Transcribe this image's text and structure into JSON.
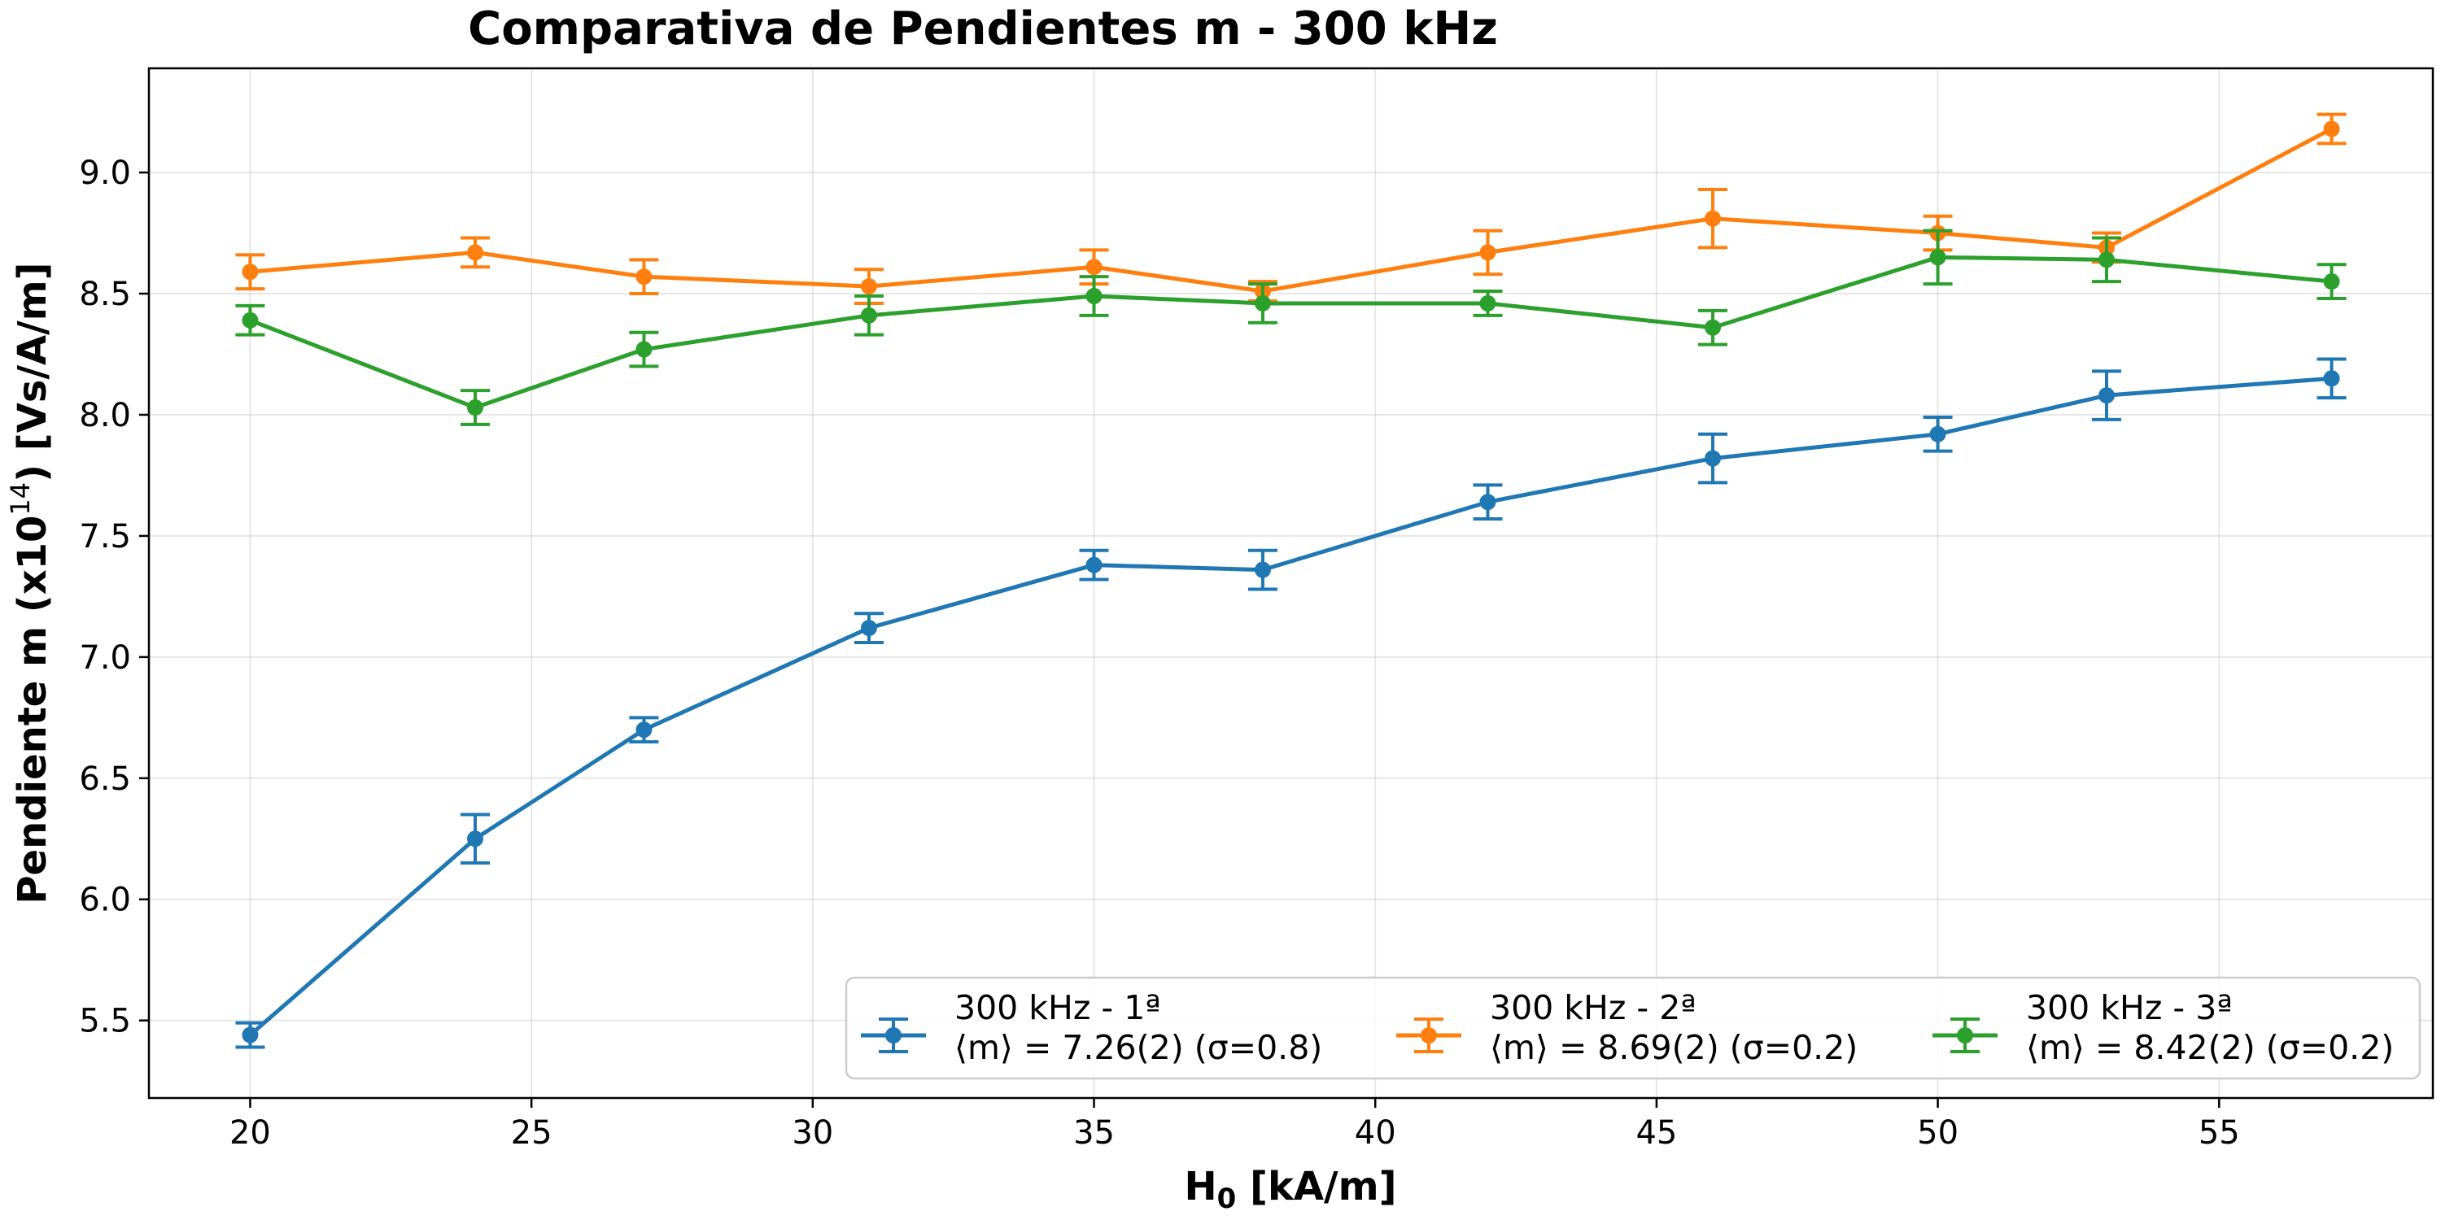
{
  "chart_data": {
    "type": "line",
    "title": "Comparativa de Pendientes m - 300 kHz",
    "xlabel_main": "H",
    "xlabel_sub": "0",
    "xlabel_rest": " [kA/m]",
    "ylabel_main": "Pendiente m (x10",
    "ylabel_sup": "14",
    "ylabel_rest": ") [Vs/A/m]",
    "xlim": [
      18.2,
      58.8
    ],
    "ylim": [
      5.18,
      9.43
    ],
    "xticks": [
      20,
      25,
      30,
      35,
      40,
      45,
      50,
      55
    ],
    "yticks": [
      5.5,
      6.0,
      6.5,
      7.0,
      7.5,
      8.0,
      8.5,
      9.0
    ],
    "ytick_labels": [
      "5.5",
      "6.0",
      "6.5",
      "7.0",
      "7.5",
      "8.0",
      "8.5",
      "9.0"
    ],
    "grid": true,
    "legend_placement": "lower-right",
    "x": [
      20,
      24,
      27,
      31,
      35,
      38,
      42,
      46,
      50,
      53,
      57
    ],
    "series": [
      {
        "name": "300 kHz - 1ª",
        "stat": "⟨m⟩ = 7.26(2) (σ=0.8)",
        "color": "#1f77b4",
        "values": [
          5.44,
          6.25,
          6.7,
          7.12,
          7.38,
          7.36,
          7.64,
          7.82,
          7.92,
          8.08,
          8.15
        ],
        "errors": [
          0.05,
          0.1,
          0.05,
          0.06,
          0.06,
          0.08,
          0.07,
          0.1,
          0.07,
          0.1,
          0.08
        ]
      },
      {
        "name": "300 kHz - 2ª",
        "stat": "⟨m⟩ = 8.69(2) (σ=0.2)",
        "color": "#ff7f0e",
        "values": [
          8.59,
          8.67,
          8.57,
          8.53,
          8.61,
          8.51,
          8.67,
          8.81,
          8.75,
          8.69,
          9.18
        ],
        "errors": [
          0.07,
          0.06,
          0.07,
          0.07,
          0.07,
          0.04,
          0.09,
          0.12,
          0.07,
          0.06,
          0.06
        ]
      },
      {
        "name": "300 kHz - 3ª",
        "stat": "⟨m⟩ = 8.42(2) (σ=0.2)",
        "color": "#2ca02c",
        "values": [
          8.39,
          8.03,
          8.27,
          8.41,
          8.49,
          8.46,
          8.46,
          8.36,
          8.65,
          8.64,
          8.55
        ],
        "errors": [
          0.06,
          0.07,
          0.07,
          0.08,
          0.08,
          0.08,
          0.05,
          0.07,
          0.11,
          0.09,
          0.07
        ]
      }
    ]
  }
}
